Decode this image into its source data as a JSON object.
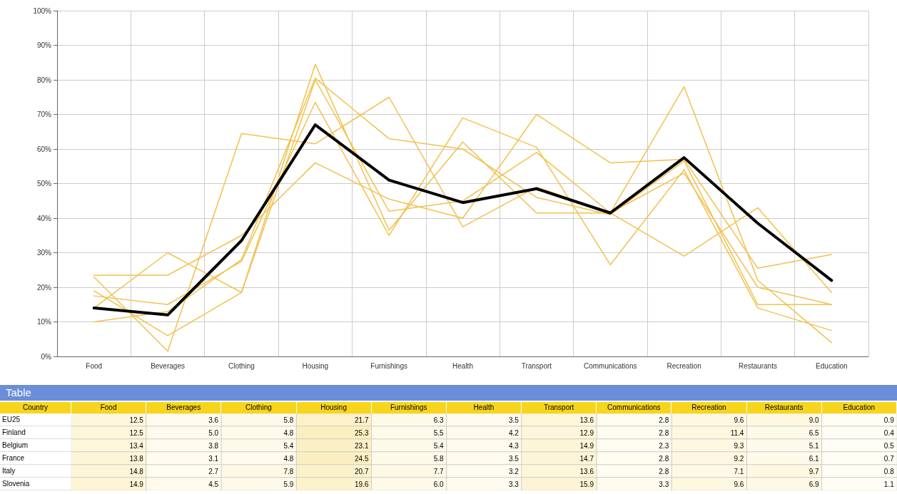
{
  "chart_data": [
    {
      "type": "line",
      "categories": [
        "Food",
        "Beverages",
        "Clothing",
        "Housing",
        "Furnishings",
        "Health",
        "Transport",
        "Communications",
        "Recreation",
        "Restaurants",
        "Education"
      ],
      "series": [
        {
          "color": "#f2c14e",
          "values": [
            14,
            30,
            18.5,
            84.5,
            36.5,
            62,
            41.5,
            41.5,
            78,
            22,
            4
          ]
        },
        {
          "color": "#f2c14e",
          "values": [
            17.5,
            15,
            27.5,
            73.5,
            35,
            69,
            60.5,
            26.5,
            54,
            14,
            7.5
          ]
        },
        {
          "color": "#f2c14e",
          "values": [
            19,
            6,
            18.5,
            80,
            42,
            45,
            59,
            41.5,
            53,
            20,
            15
          ]
        },
        {
          "color": "#f2c14e",
          "values": [
            23,
            1.5,
            64.5,
            61.5,
            75,
            37.5,
            49,
            41.5,
            29,
            43,
            18.5
          ]
        },
        {
          "color": "#f2c14e",
          "values": [
            23.5,
            23.5,
            35,
            56,
            45.5,
            40,
            70,
            56,
            57,
            25.5,
            29.5
          ]
        },
        {
          "color": "#f2c14e",
          "values": [
            10,
            13,
            28,
            80.5,
            63,
            60,
            46,
            41,
            56.5,
            15,
            15
          ]
        },
        {
          "color": "#000000",
          "values": [
            14,
            12,
            33.5,
            67,
            51,
            44.5,
            48.5,
            41.5,
            57.5,
            38.5,
            22
          ]
        }
      ],
      "ylim": [
        0,
        100
      ],
      "yticks": [
        {
          "value": 0,
          "label": "0%"
        },
        {
          "value": 10,
          "label": "10%"
        },
        {
          "value": 20,
          "label": "20%"
        },
        {
          "value": 30,
          "label": "30%"
        },
        {
          "value": 40,
          "label": "40%"
        },
        {
          "value": 50,
          "label": "50%"
        },
        {
          "value": 60,
          "label": "60%"
        },
        {
          "value": 70,
          "label": "70%"
        },
        {
          "value": 80,
          "label": "80%"
        },
        {
          "value": 90,
          "label": "90%"
        },
        {
          "value": 100,
          "label": "100%"
        }
      ],
      "grid": true,
      "marker": "none",
      "line_style": "solid"
    },
    {
      "type": "heatmap",
      "title": "Table",
      "ylabel": "Country",
      "categories": [
        "Food",
        "Beverages",
        "Clothing",
        "Housing",
        "Furnishings",
        "Health",
        "Transport",
        "Communications",
        "Recreation",
        "Restaurants",
        "Education"
      ],
      "y_categories": [
        "EU25",
        "Finland",
        "Belgium",
        "France",
        "Italy",
        "Slovenia"
      ],
      "cells": [
        [
          12.5,
          3.6,
          5.8,
          21.7,
          6.3,
          3.5,
          13.6,
          2.8,
          9.6,
          9.0,
          0.9
        ],
        [
          12.5,
          5.0,
          4.8,
          25.3,
          5.5,
          4.2,
          12.9,
          2.8,
          11.4,
          6.5,
          0.4
        ],
        [
          13.4,
          3.8,
          5.4,
          23.1,
          5.4,
          4.3,
          14.9,
          2.3,
          9.3,
          5.1,
          0.5
        ],
        [
          13.8,
          3.1,
          4.8,
          24.5,
          5.8,
          3.5,
          14.7,
          2.8,
          9.2,
          6.1,
          0.7
        ],
        [
          14.8,
          2.7,
          7.8,
          20.7,
          7.7,
          3.2,
          13.6,
          2.8,
          7.1,
          9.7,
          0.8
        ],
        [
          14.9,
          4.5,
          5.9,
          19.6,
          6.0,
          3.3,
          15.9,
          3.3,
          9.6,
          6.9,
          1.1
        ]
      ],
      "cell_labels": [
        [
          "12.5",
          "3.6",
          "5.8",
          "21.7",
          "6.3",
          "3.5",
          "13.6",
          "2.8",
          "9.6",
          "9.0",
          "0.9"
        ],
        [
          "12.5",
          "5.0",
          "4.8",
          "25.3",
          "5.5",
          "4.2",
          "12.9",
          "2.8",
          "11.4",
          "6.5",
          "0.4"
        ],
        [
          "13.4",
          "3.8",
          "5.4",
          "23.1",
          "5.4",
          "4.3",
          "14.9",
          "2.3",
          "9.3",
          "5.1",
          "0.5"
        ],
        [
          "13.8",
          "3.1",
          "4.8",
          "24.5",
          "5.8",
          "3.5",
          "14.7",
          "2.8",
          "9.2",
          "6.1",
          "0.7"
        ],
        [
          "14.8",
          "2.7",
          "7.8",
          "20.7",
          "7.7",
          "3.2",
          "13.6",
          "2.8",
          "7.1",
          "9.7",
          "0.8"
        ],
        [
          "14.9",
          "4.5",
          "5.9",
          "19.6",
          "6.0",
          "3.3",
          "15.9",
          "3.3",
          "9.6",
          "6.9",
          "1.1"
        ]
      ]
    }
  ]
}
